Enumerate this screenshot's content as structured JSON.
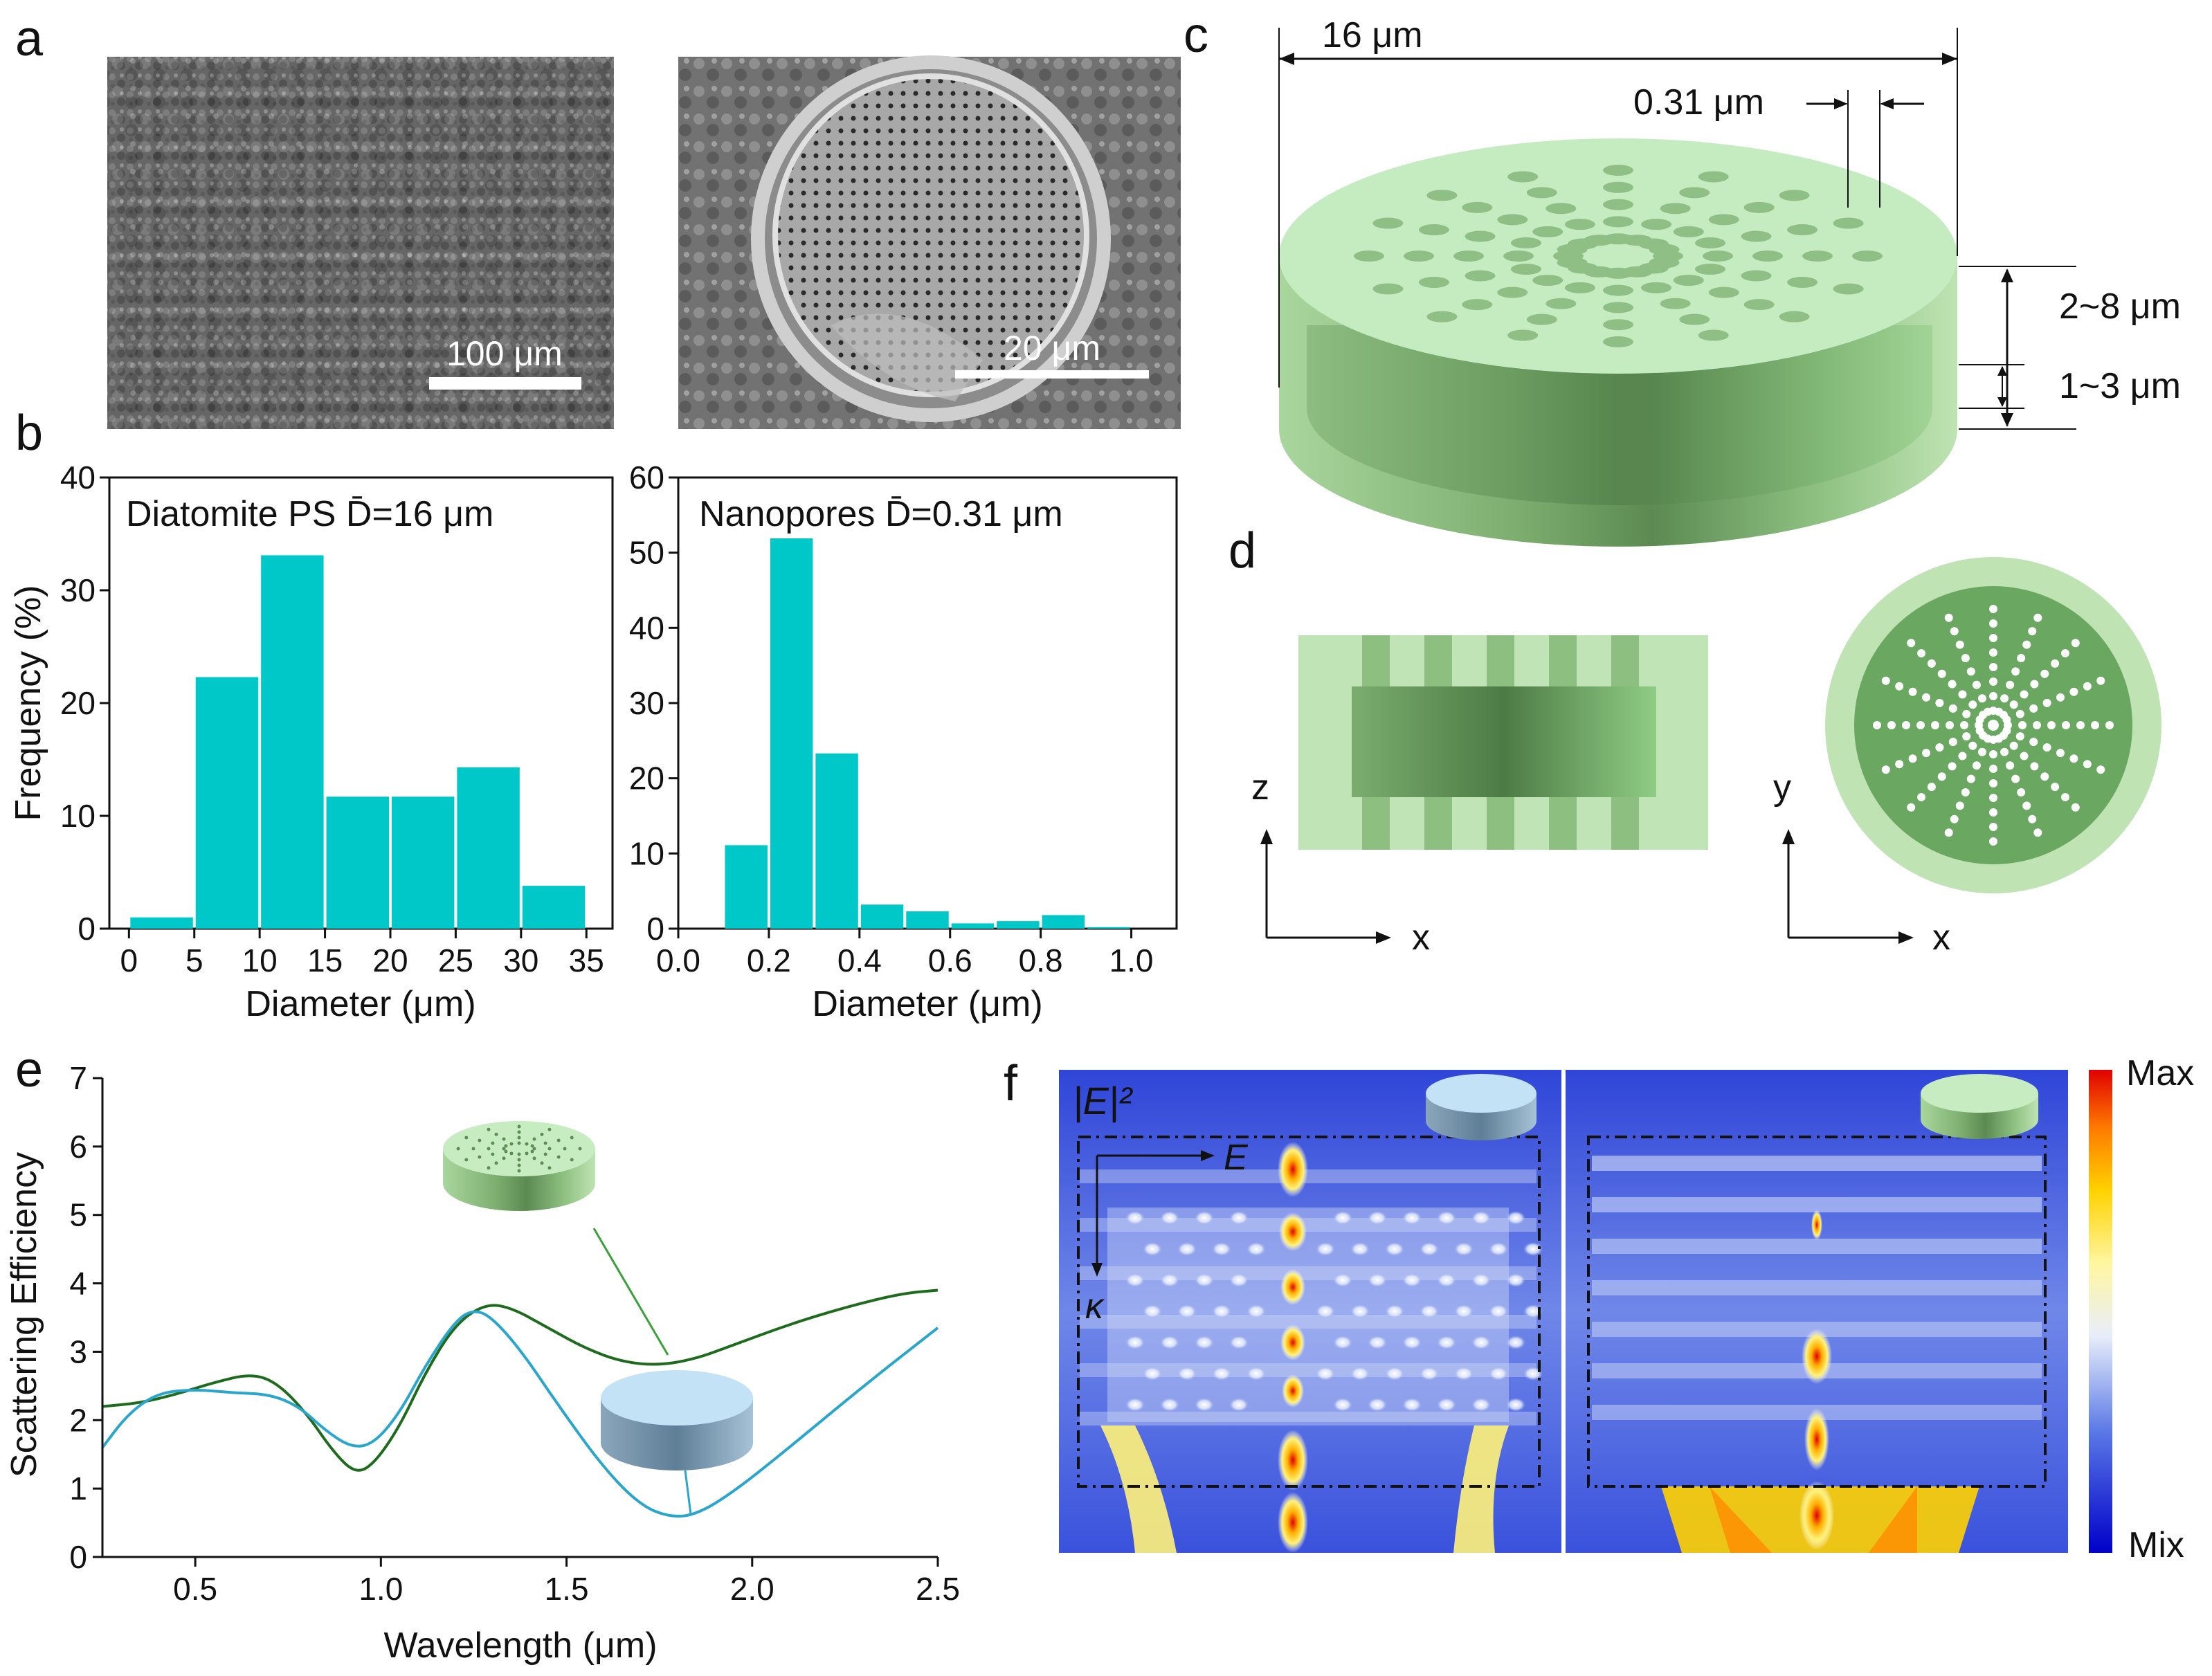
{
  "panel_labels": [
    "a",
    "b",
    "c",
    "d",
    "e",
    "f"
  ],
  "panel_a": {
    "scalebar_left": "100 μm",
    "scalebar_right": "20 μm"
  },
  "chart_data": [
    {
      "id": "b-left",
      "type": "bar",
      "annotation": "Diatomite PS  D̄=16 μm",
      "bin_edges": [
        0,
        5,
        10,
        15,
        20,
        25,
        30,
        35
      ],
      "values": [
        1,
        22.3,
        33.1,
        11.7,
        11.7,
        14.3,
        3.8
      ],
      "xlabel": "Diameter (μm)",
      "ylabel": "Frequency (%)",
      "xlim": [
        -1.5,
        37
      ],
      "ylim": [
        0,
        40
      ],
      "xticks": [
        "0",
        "5",
        "10",
        "15",
        "20",
        "25",
        "30",
        "35"
      ],
      "yticks": [
        "0",
        "10",
        "20",
        "30",
        "40"
      ],
      "color": "#00c8c8"
    },
    {
      "id": "b-right",
      "type": "bar",
      "annotation": "Nanopores  D̄=0.31 μm",
      "bin_edges": [
        0.1,
        0.2,
        0.3,
        0.4,
        0.5,
        0.6,
        0.7,
        0.8,
        0.9,
        1.0
      ],
      "values": [
        11.1,
        51.9,
        23.3,
        3.2,
        2.3,
        0.7,
        1.0,
        1.8,
        0.2
      ],
      "xlabel": "Diameter (μm)",
      "ylabel": "",
      "xlim": [
        0,
        1.1
      ],
      "ylim": [
        0,
        60
      ],
      "xticks": [
        "0.0",
        "0.2",
        "0.4",
        "0.6",
        "0.8",
        "1.0"
      ],
      "yticks": [
        "0",
        "10",
        "20",
        "30",
        "40",
        "50",
        "60"
      ],
      "color": "#00c8c8"
    },
    {
      "id": "e",
      "type": "line",
      "xlabel": "Wavelength (μm)",
      "ylabel": "Scattering Efficiency",
      "xlim": [
        0.25,
        2.5
      ],
      "ylim": [
        0,
        7
      ],
      "xticks": [
        "0.5",
        "1.0",
        "1.5",
        "2.0",
        "2.5"
      ],
      "yticks": [
        "0",
        "1",
        "2",
        "3",
        "4",
        "5",
        "6",
        "7"
      ],
      "series": [
        {
          "name": "porous disk",
          "color": "#1e6b1e",
          "points": [
            [
              0.25,
              2.2
            ],
            [
              0.35,
              2.25
            ],
            [
              0.45,
              2.38
            ],
            [
              0.55,
              2.55
            ],
            [
              0.65,
              2.68
            ],
            [
              0.72,
              2.55
            ],
            [
              0.8,
              2.1
            ],
            [
              0.87,
              1.55
            ],
            [
              0.93,
              1.22
            ],
            [
              0.98,
              1.35
            ],
            [
              1.05,
              1.9
            ],
            [
              1.12,
              2.7
            ],
            [
              1.2,
              3.4
            ],
            [
              1.28,
              3.7
            ],
            [
              1.35,
              3.65
            ],
            [
              1.45,
              3.35
            ],
            [
              1.55,
              3.05
            ],
            [
              1.65,
              2.85
            ],
            [
              1.75,
              2.8
            ],
            [
              1.85,
              2.9
            ],
            [
              1.95,
              3.1
            ],
            [
              2.1,
              3.4
            ],
            [
              2.25,
              3.65
            ],
            [
              2.4,
              3.85
            ],
            [
              2.5,
              3.9
            ]
          ]
        },
        {
          "name": "solid disk",
          "color": "#2aa5cc",
          "points": [
            [
              0.25,
              1.6
            ],
            [
              0.32,
              2.1
            ],
            [
              0.4,
              2.4
            ],
            [
              0.5,
              2.45
            ],
            [
              0.6,
              2.4
            ],
            [
              0.7,
              2.38
            ],
            [
              0.78,
              2.2
            ],
            [
              0.85,
              1.85
            ],
            [
              0.92,
              1.6
            ],
            [
              0.98,
              1.65
            ],
            [
              1.05,
              2.1
            ],
            [
              1.12,
              2.8
            ],
            [
              1.2,
              3.45
            ],
            [
              1.25,
              3.62
            ],
            [
              1.3,
              3.5
            ],
            [
              1.38,
              3.0
            ],
            [
              1.48,
              2.2
            ],
            [
              1.6,
              1.3
            ],
            [
              1.7,
              0.75
            ],
            [
              1.78,
              0.58
            ],
            [
              1.85,
              0.62
            ],
            [
              1.95,
              0.95
            ],
            [
              2.1,
              1.6
            ],
            [
              2.3,
              2.5
            ],
            [
              2.5,
              3.35
            ]
          ]
        }
      ]
    }
  ],
  "panel_c": {
    "diameter": "16 μm",
    "pore": "0.31 μm",
    "height": "2~8 μm",
    "gap": "1~3 μm"
  },
  "panel_d": {
    "side_axis_v": "z",
    "side_axis_h": "x",
    "top_axis_v": "y",
    "top_axis_h": "x"
  },
  "panel_f": {
    "field_label": "|E|²",
    "efield_label": "E",
    "kvec_label": "κ",
    "colorbar_max": "Max",
    "colorbar_min": "Mix"
  }
}
